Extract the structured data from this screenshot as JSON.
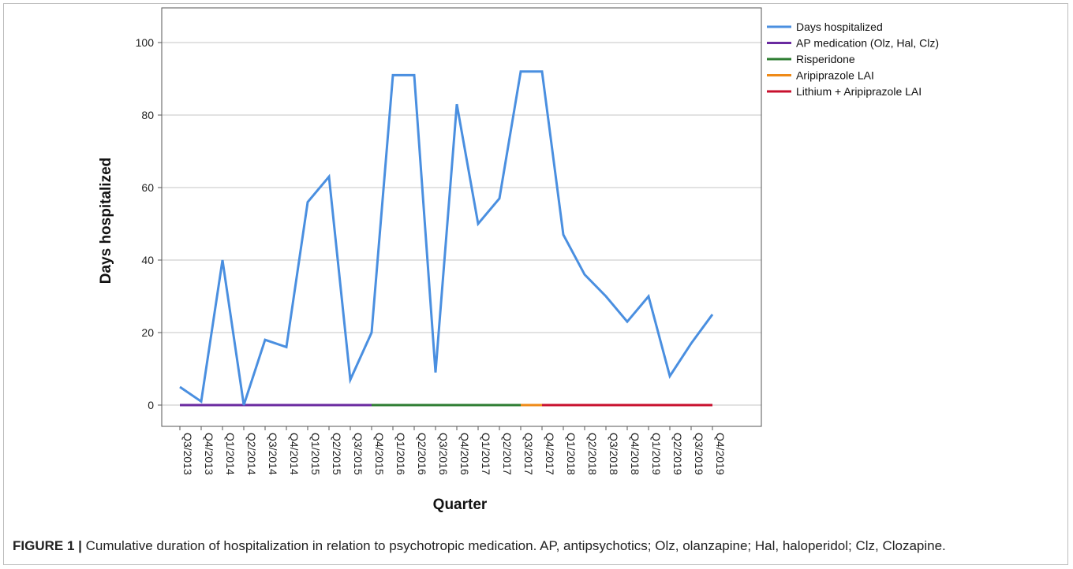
{
  "caption": {
    "label": "FIGURE 1 |",
    "text": " Cumulative duration of hospitalization in relation to psychotropic medication. AP, antipsychotics; Olz, olanzapine; Hal, haloperidol; Clz, Clozapine."
  },
  "chart_data": {
    "type": "line",
    "title": "",
    "xlabel": "Quarter",
    "ylabel": "Days hospitalized",
    "ylim": [
      0,
      100
    ],
    "yticks": [
      0,
      20,
      40,
      60,
      80,
      100
    ],
    "grid": "horizontal",
    "legend_position": "top-right",
    "categories": [
      "Q3/2013",
      "Q4/2013",
      "Q1/2014",
      "Q2/2014",
      "Q3/2014",
      "Q4/2014",
      "Q1/2015",
      "Q2/2015",
      "Q3/2015",
      "Q4/2015",
      "Q1/2016",
      "Q2/2016",
      "Q3/2016",
      "Q4/2016",
      "Q1/2017",
      "Q2/2017",
      "Q3/2017",
      "Q4/2017",
      "Q1/2018",
      "Q2/2018",
      "Q3/2018",
      "Q4/2018",
      "Q1/2019",
      "Q2/2019",
      "Q3/2019",
      "Q4/2019"
    ],
    "series": [
      {
        "name": "Days hospitalized",
        "color": "#4a8fe0",
        "values": [
          5,
          1,
          40,
          0,
          18,
          16,
          56,
          63,
          7,
          20,
          91,
          91,
          9,
          83,
          50,
          57,
          92,
          92,
          47,
          36,
          30,
          23,
          30,
          8,
          17,
          25
        ]
      }
    ],
    "medication_periods": [
      {
        "name": "AP medication (Olz, Hal, Clz)",
        "color": "#6a2aa0",
        "start": "Q3/2013",
        "end": "Q4/2015"
      },
      {
        "name": "Risperidone",
        "color": "#2e7d32",
        "start": "Q4/2015",
        "end": "Q3/2017"
      },
      {
        "name": "Aripiprazole LAI",
        "color": "#ef8a17",
        "start": "Q3/2017",
        "end": "Q4/2017"
      },
      {
        "name": "Lithium + Aripiprazole LAI",
        "color": "#c8102e",
        "start": "Q4/2017",
        "end": "Q4/2019"
      }
    ]
  }
}
